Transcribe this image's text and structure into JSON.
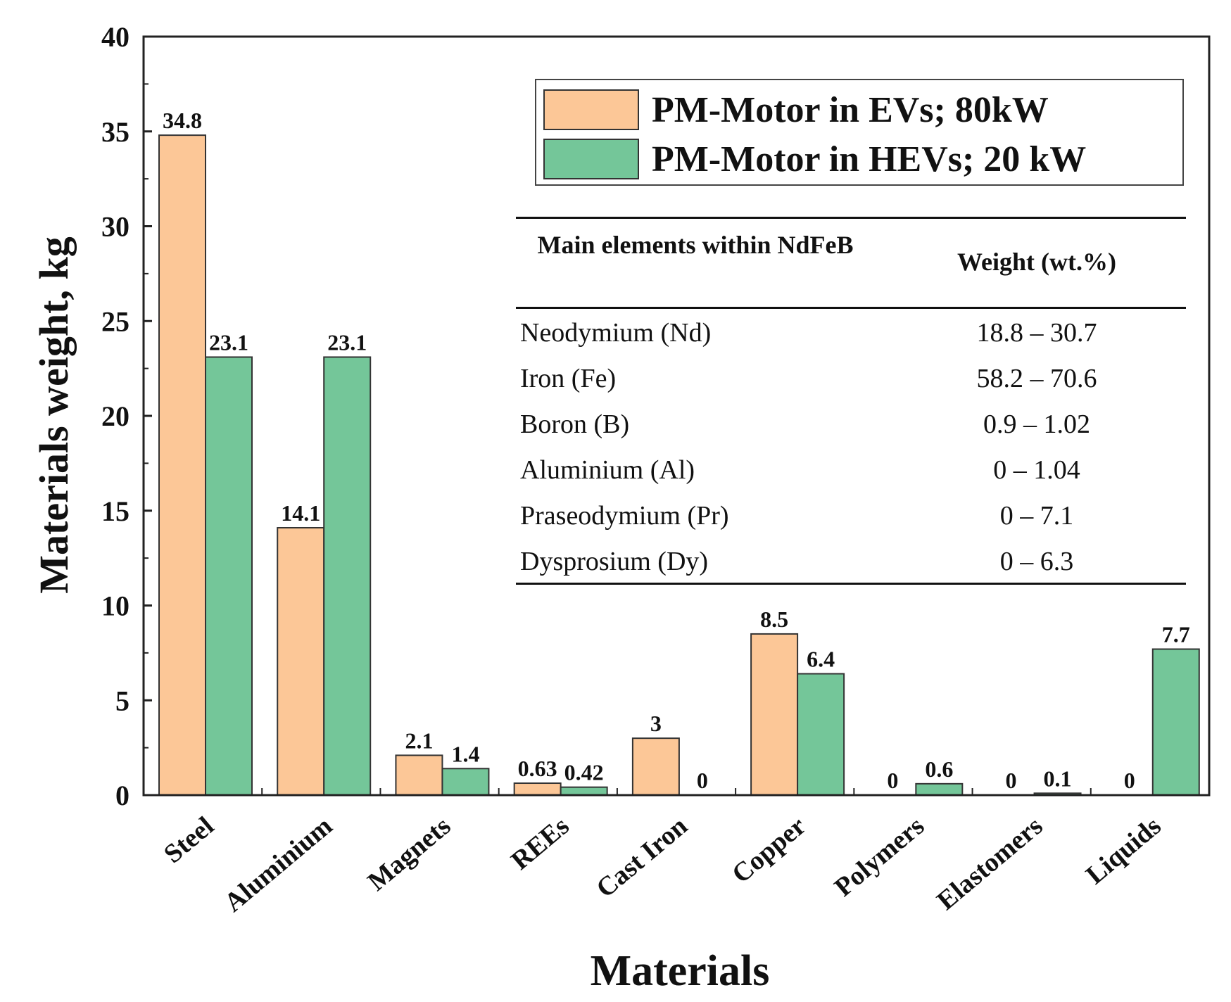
{
  "chart_data": {
    "type": "bar",
    "title": "",
    "xlabel": "Materials",
    "ylabel": "Materials weight, kg",
    "ylim": [
      0,
      40
    ],
    "yticks": [
      0,
      5,
      10,
      15,
      20,
      25,
      30,
      35,
      40
    ],
    "categories": [
      "Steel",
      "Aluminium",
      "Magnets",
      "REEs",
      "Cast Iron",
      "Copper",
      "Polymers",
      "Elastomers",
      "Liquids"
    ],
    "series": [
      {
        "name": "PM-Motor in EVs; 80kW",
        "color": "#fcc797",
        "values": [
          34.8,
          14.1,
          2.1,
          0.63,
          3,
          8.5,
          0,
          0,
          0
        ],
        "labels": [
          "34.8",
          "14.1",
          "2.1",
          "0.63",
          "3",
          "8.5",
          "0",
          "0",
          "0"
        ]
      },
      {
        "name": "PM-Motor in HEVs; 20 kW",
        "color": "#74c699",
        "values": [
          23.1,
          23.1,
          1.4,
          0.42,
          0,
          6.4,
          0.6,
          0.1,
          7.7
        ],
        "labels": [
          "23.1",
          "23.1",
          "1.4",
          "0.42",
          "0",
          "6.4",
          "0.6",
          "0.1",
          "7.7"
        ]
      }
    ],
    "legend_position": "top-right",
    "grid": false
  },
  "nd_table": {
    "headers": [
      "Main elements within NdFeB",
      "Weight (wt.%)"
    ],
    "rows": [
      {
        "element": "Neodymium (Nd)",
        "weight": "18.8 – 30.7"
      },
      {
        "element": "Iron (Fe)",
        "weight": "58.2 – 70.6"
      },
      {
        "element": "Boron (B)",
        "weight": "0.9 – 1.02"
      },
      {
        "element": "Aluminium (Al)",
        "weight": "0 – 1.04"
      },
      {
        "element": "Praseodymium (Pr)",
        "weight": "0 – 7.1"
      },
      {
        "element": "Dysprosium (Dy)",
        "weight": "0 – 6.3"
      }
    ]
  }
}
